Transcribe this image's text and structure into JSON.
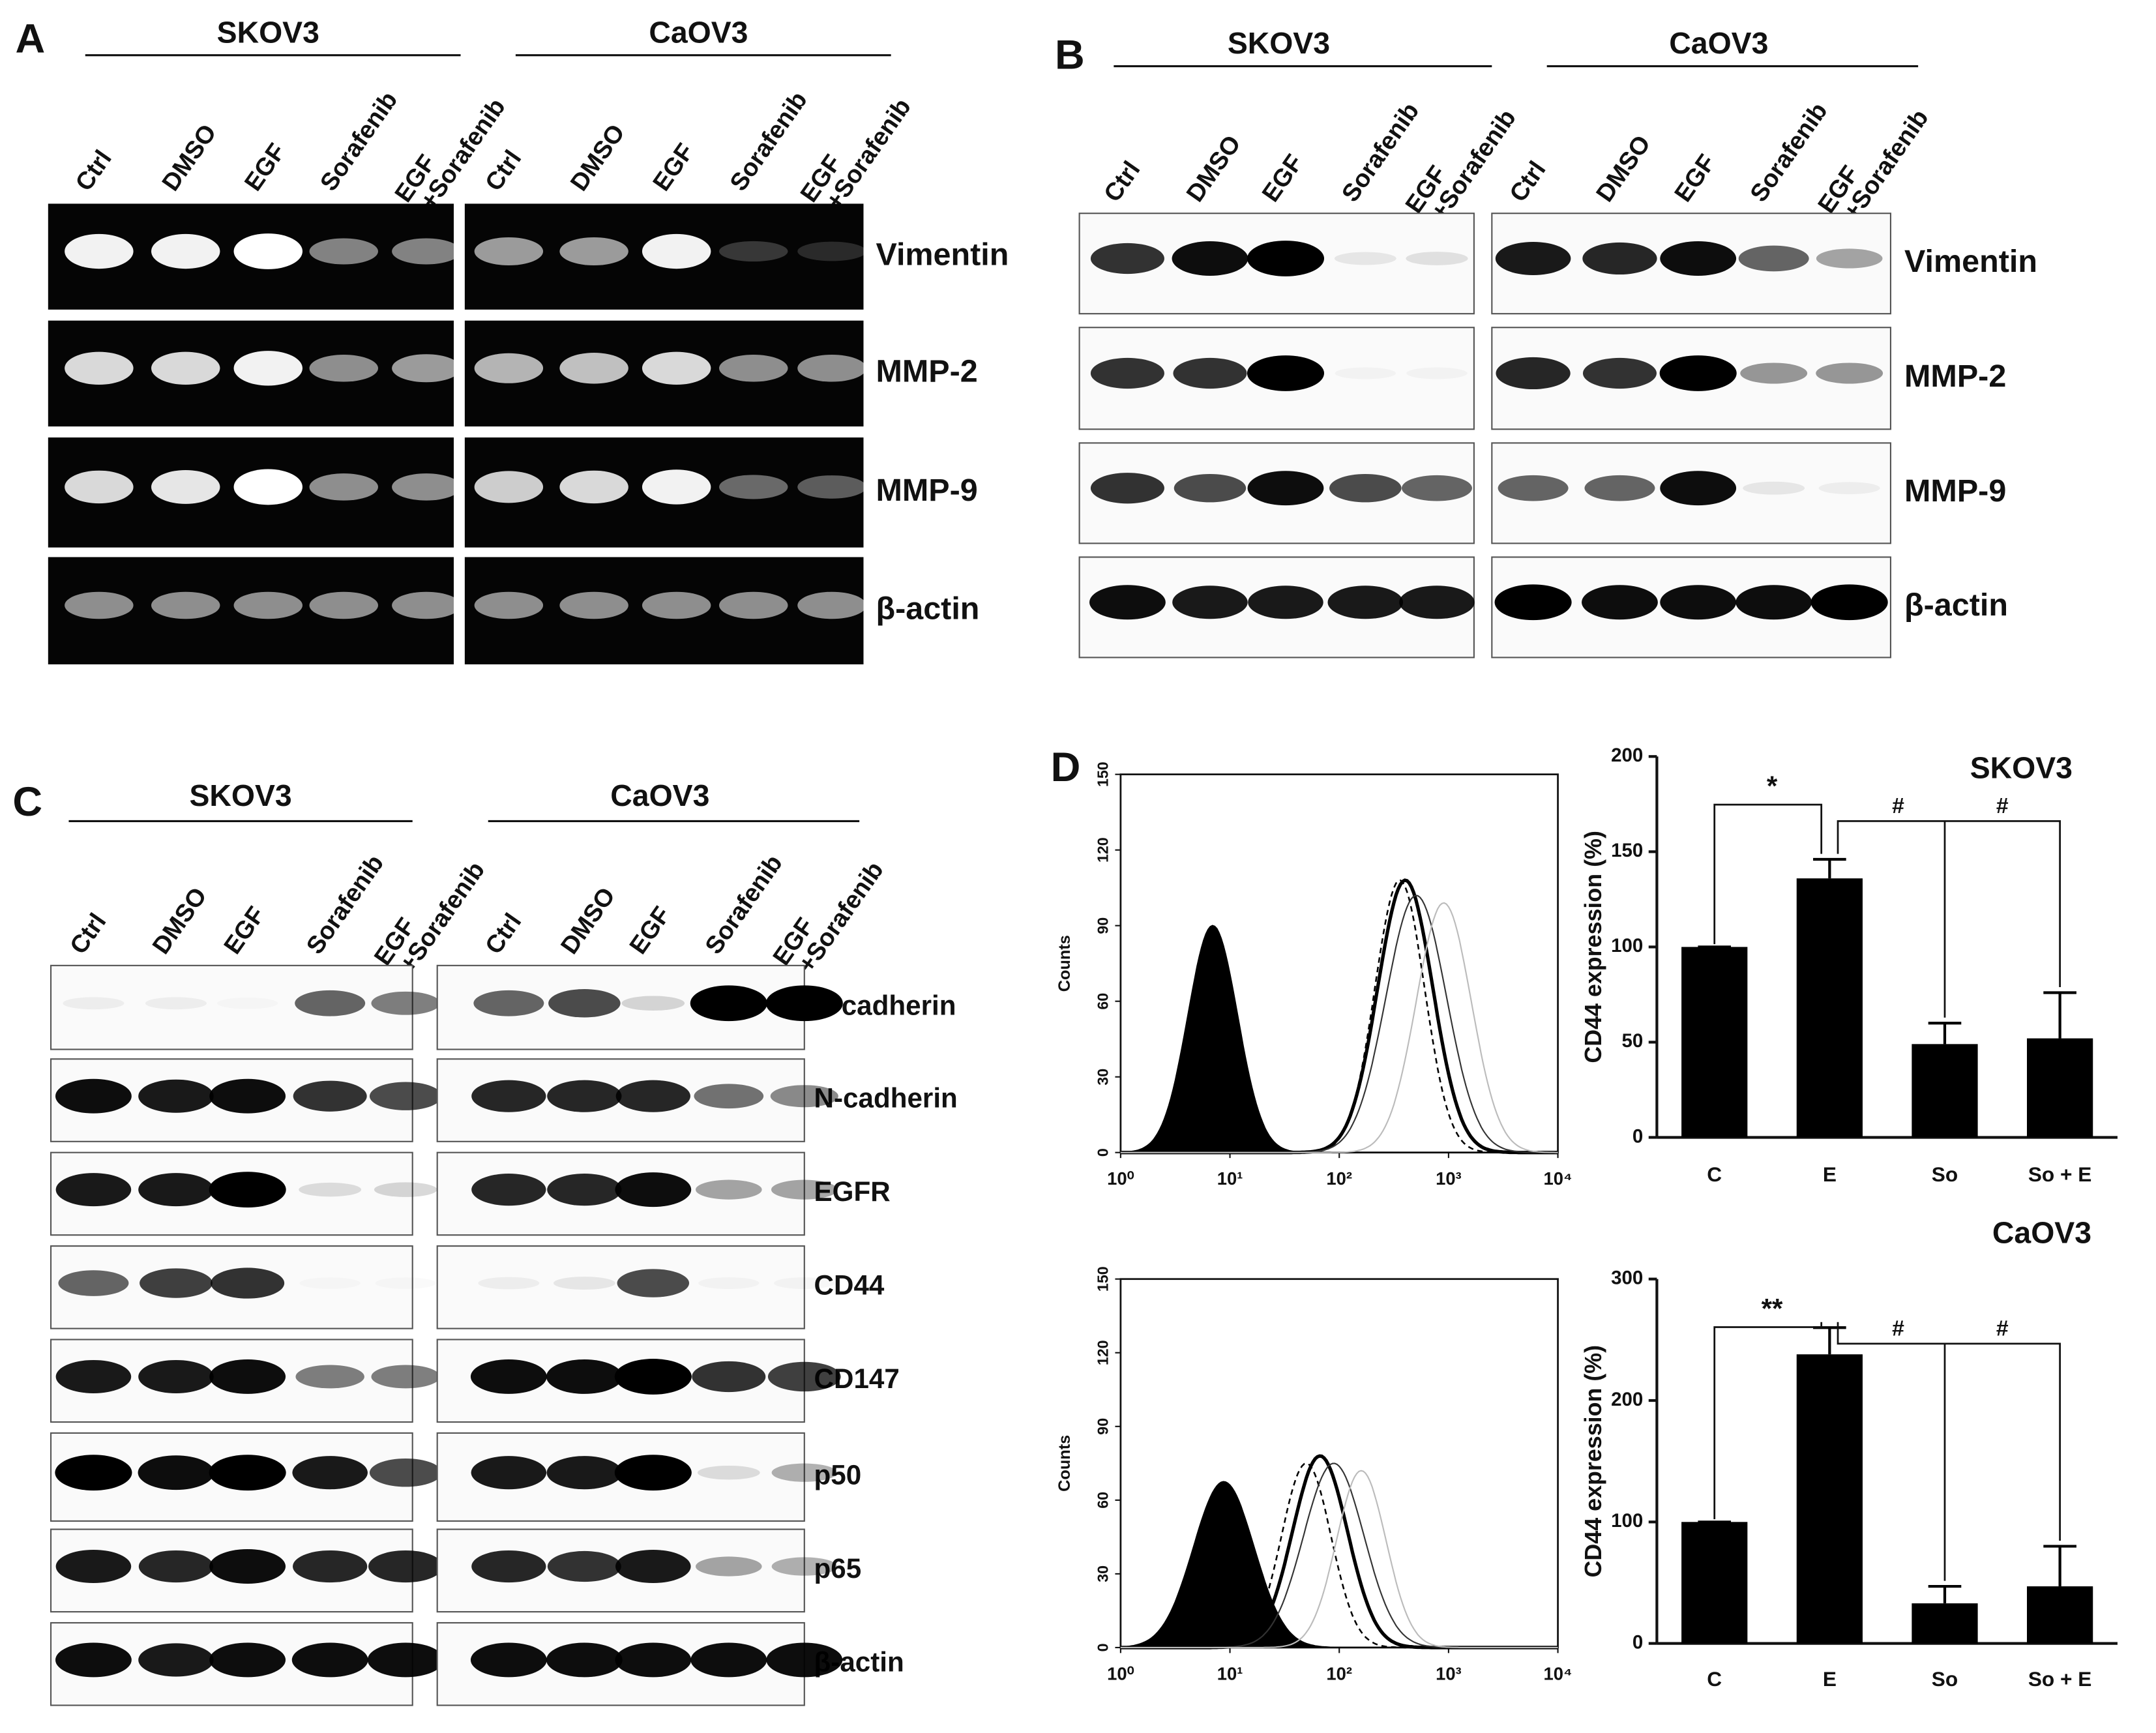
{
  "panels": {
    "A": {
      "label": "A",
      "groups": [
        "SKOV3",
        "CaOV3"
      ],
      "lanes": [
        [
          "Ctrl"
        ],
        [
          "DMSO"
        ],
        [
          "EGF"
        ],
        [
          "Sorafenib"
        ],
        [
          "EGF",
          "+Sorafenib"
        ]
      ],
      "rows": [
        "Vimentin",
        "MMP-2",
        "MMP-9",
        "β-actin"
      ]
    },
    "B": {
      "label": "B",
      "groups": [
        "SKOV3",
        "CaOV3"
      ],
      "lanes": [
        [
          "Ctrl"
        ],
        [
          "DMSO"
        ],
        [
          "EGF"
        ],
        [
          "Sorafenib"
        ],
        [
          "EGF",
          "+Sorafenib"
        ]
      ],
      "rows": [
        "Vimentin",
        "MMP-2",
        "MMP-9",
        "β-actin"
      ]
    },
    "C": {
      "label": "C",
      "groups": [
        "SKOV3",
        "CaOV3"
      ],
      "lanes": [
        [
          "Ctrl"
        ],
        [
          "DMSO"
        ],
        [
          "EGF"
        ],
        [
          "Sorafenib"
        ],
        [
          "EGF",
          "+Sorafenib"
        ]
      ],
      "rows": [
        "E-cadherin",
        "N-cadherin",
        "EGFR",
        "CD44",
        "CD147",
        "p50",
        "p65",
        "β-actin"
      ]
    },
    "D": {
      "label": "D",
      "histograms": [
        {
          "ylabel": "Counts",
          "ylim": [
            0,
            150
          ],
          "yticks": [
            0,
            30,
            60,
            90,
            120,
            150
          ],
          "xlim": [
            1,
            10000
          ],
          "xscale": "log",
          "xticks": [
            {
              "value": 1,
              "label": "10⁰"
            },
            {
              "value": 10,
              "label": "10¹"
            },
            {
              "value": 100,
              "label": "10²"
            },
            {
              "value": 1000,
              "label": "10³"
            },
            {
              "value": 10000,
              "label": "10⁴"
            }
          ]
        },
        {
          "ylabel": "Counts",
          "ylim": [
            0,
            150
          ],
          "yticks": [
            0,
            30,
            60,
            90,
            120,
            150
          ],
          "xlim": [
            1,
            10000
          ],
          "xscale": "log",
          "xticks": [
            {
              "value": 1,
              "label": "10⁰"
            },
            {
              "value": 10,
              "label": "10¹"
            },
            {
              "value": 100,
              "label": "10²"
            },
            {
              "value": 1000,
              "label": "10³"
            },
            {
              "value": 10000,
              "label": "10⁴"
            }
          ]
        }
      ]
    }
  },
  "chart_data": [
    {
      "type": "bar",
      "title": "SKOV3",
      "ylabel": "CD44 expression (%)",
      "categories": [
        "C",
        "E",
        "So",
        "So + E"
      ],
      "values": [
        100,
        136,
        49,
        52
      ],
      "errors": [
        0,
        10,
        11,
        24
      ],
      "color": "#000000",
      "ylim": [
        0,
        200
      ],
      "yticks": [
        0,
        50,
        100,
        150,
        200
      ],
      "annotations": [
        "*",
        "#",
        "#"
      ]
    },
    {
      "type": "bar",
      "title": "CaOV3",
      "ylabel": "CD44 expression (%)",
      "categories": [
        "C",
        "E",
        "So",
        "So + E"
      ],
      "values": [
        100,
        238,
        33,
        47
      ],
      "errors": [
        0,
        22,
        14,
        33
      ],
      "color": "#000000",
      "ylim": [
        0,
        300
      ],
      "yticks": [
        0,
        100,
        200,
        300
      ],
      "annotations": [
        "**",
        "#",
        "#"
      ]
    }
  ]
}
